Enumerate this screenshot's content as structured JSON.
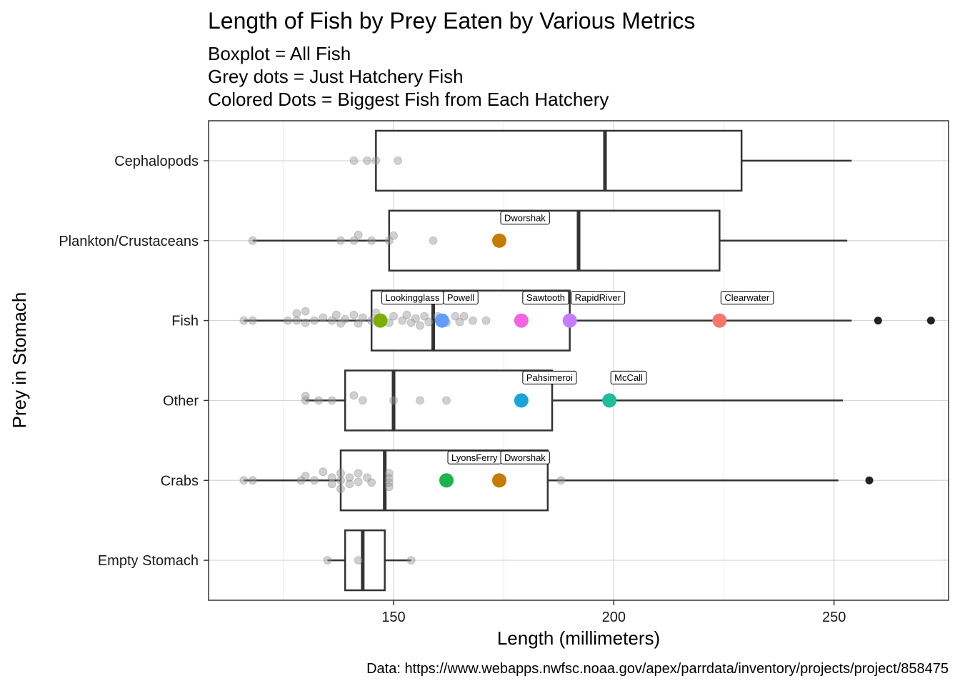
{
  "chart_data": {
    "type": "boxplot",
    "title": "Length of Fish by Prey Eaten by Various Metrics",
    "subtitle_lines": [
      "Boxplot = All Fish",
      "Grey dots = Just Hatchery Fish",
      "Colored Dots = Biggest Fish from Each Hatchery"
    ],
    "xlabel": "Length (millimeters)",
    "ylabel": "Prey in Stomach",
    "caption": "Data: https://www.webapps.nwfsc.noaa.gov/apex/parrdata/inventory/projects/project/858475",
    "xlim": [
      108,
      276
    ],
    "x_ticks": [
      150,
      200,
      250
    ],
    "grid": true,
    "categories": [
      "Cephalopods",
      "Plankton/Crustaceans",
      "Fish",
      "Other",
      "Crabs",
      "Empty Stomach"
    ],
    "boxes": [
      {
        "category": "Cephalopods",
        "whisker_low": 146,
        "q1": 146,
        "median": 198,
        "q3": 229,
        "whisker_high": 254,
        "outliers": []
      },
      {
        "category": "Plankton/Crustaceans",
        "whisker_low": 118,
        "q1": 149,
        "median": 192,
        "q3": 224,
        "whisker_high": 253,
        "outliers": []
      },
      {
        "category": "Fish",
        "whisker_low": 116,
        "q1": 145,
        "median": 159,
        "q3": 190,
        "whisker_high": 254,
        "outliers": [
          260,
          272
        ]
      },
      {
        "category": "Other",
        "whisker_low": 130,
        "q1": 139,
        "median": 150,
        "q3": 186,
        "whisker_high": 252,
        "outliers": []
      },
      {
        "category": "Crabs",
        "whisker_low": 116,
        "q1": 138,
        "median": 148,
        "q3": 185,
        "whisker_high": 251,
        "outliers": [
          258
        ]
      },
      {
        "category": "Empty Stomach",
        "whisker_low": 135,
        "q1": 139,
        "median": 143,
        "q3": 148,
        "whisker_high": 154,
        "outliers": []
      }
    ],
    "hatchery_points": [
      {
        "category": "Cephalopods",
        "x": 141,
        "offset": 0
      },
      {
        "category": "Cephalopods",
        "x": 144,
        "offset": 0
      },
      {
        "category": "Cephalopods",
        "x": 146,
        "offset": 0
      },
      {
        "category": "Cephalopods",
        "x": 151,
        "offset": 0
      },
      {
        "category": "Plankton/Crustaceans",
        "x": 118,
        "offset": 0
      },
      {
        "category": "Plankton/Crustaceans",
        "x": 138,
        "offset": 0
      },
      {
        "category": "Plankton/Crustaceans",
        "x": 141,
        "offset": 0
      },
      {
        "category": "Plankton/Crustaceans",
        "x": 142,
        "offset": -8
      },
      {
        "category": "Plankton/Crustaceans",
        "x": 145,
        "offset": 0
      },
      {
        "category": "Plankton/Crustaceans",
        "x": 149,
        "offset": 0
      },
      {
        "category": "Plankton/Crustaceans",
        "x": 150,
        "offset": -7
      },
      {
        "category": "Plankton/Crustaceans",
        "x": 159,
        "offset": 0
      },
      {
        "category": "Fish",
        "x": 116,
        "offset": 0
      },
      {
        "category": "Fish",
        "x": 118,
        "offset": 0
      },
      {
        "category": "Fish",
        "x": 126,
        "offset": 0
      },
      {
        "category": "Fish",
        "x": 128,
        "offset": -10
      },
      {
        "category": "Fish",
        "x": 128,
        "offset": 0
      },
      {
        "category": "Fish",
        "x": 130,
        "offset": -13
      },
      {
        "category": "Fish",
        "x": 130,
        "offset": 3
      },
      {
        "category": "Fish",
        "x": 132,
        "offset": 0
      },
      {
        "category": "Fish",
        "x": 134,
        "offset": -4
      },
      {
        "category": "Fish",
        "x": 136,
        "offset": 0
      },
      {
        "category": "Fish",
        "x": 137,
        "offset": -8
      },
      {
        "category": "Fish",
        "x": 138,
        "offset": 4
      },
      {
        "category": "Fish",
        "x": 139,
        "offset": -2
      },
      {
        "category": "Fish",
        "x": 141,
        "offset": -8
      },
      {
        "category": "Fish",
        "x": 142,
        "offset": 4
      },
      {
        "category": "Fish",
        "x": 143,
        "offset": -4
      },
      {
        "category": "Fish",
        "x": 145,
        "offset": 0
      },
      {
        "category": "Fish",
        "x": 146,
        "offset": -11
      },
      {
        "category": "Fish",
        "x": 149,
        "offset": 3
      },
      {
        "category": "Fish",
        "x": 150,
        "offset": -6
      },
      {
        "category": "Fish",
        "x": 152,
        "offset": 0
      },
      {
        "category": "Fish",
        "x": 153,
        "offset": -8
      },
      {
        "category": "Fish",
        "x": 154,
        "offset": 3
      },
      {
        "category": "Fish",
        "x": 155,
        "offset": -3
      },
      {
        "category": "Fish",
        "x": 156,
        "offset": 7
      },
      {
        "category": "Fish",
        "x": 157,
        "offset": -6
      },
      {
        "category": "Fish",
        "x": 158,
        "offset": 2
      },
      {
        "category": "Fish",
        "x": 160,
        "offset": -6
      },
      {
        "category": "Fish",
        "x": 162,
        "offset": 3
      },
      {
        "category": "Fish",
        "x": 164,
        "offset": -6
      },
      {
        "category": "Fish",
        "x": 165,
        "offset": 2
      },
      {
        "category": "Fish",
        "x": 166,
        "offset": -6
      },
      {
        "category": "Fish",
        "x": 168,
        "offset": 0
      },
      {
        "category": "Fish",
        "x": 171,
        "offset": 0
      },
      {
        "category": "Other",
        "x": 130,
        "offset": -6
      },
      {
        "category": "Other",
        "x": 130,
        "offset": 0
      },
      {
        "category": "Other",
        "x": 133,
        "offset": 0
      },
      {
        "category": "Other",
        "x": 136,
        "offset": 0
      },
      {
        "category": "Other",
        "x": 141,
        "offset": -7
      },
      {
        "category": "Other",
        "x": 143,
        "offset": 0
      },
      {
        "category": "Other",
        "x": 150,
        "offset": 0
      },
      {
        "category": "Other",
        "x": 156,
        "offset": 0
      },
      {
        "category": "Other",
        "x": 162,
        "offset": 0
      },
      {
        "category": "Crabs",
        "x": 116,
        "offset": 0
      },
      {
        "category": "Crabs",
        "x": 118,
        "offset": 0
      },
      {
        "category": "Crabs",
        "x": 129,
        "offset": 0
      },
      {
        "category": "Crabs",
        "x": 130,
        "offset": -6
      },
      {
        "category": "Crabs",
        "x": 132,
        "offset": 0
      },
      {
        "category": "Crabs",
        "x": 134,
        "offset": -12
      },
      {
        "category": "Crabs",
        "x": 136,
        "offset": -4
      },
      {
        "category": "Crabs",
        "x": 136,
        "offset": 5
      },
      {
        "category": "Crabs",
        "x": 138,
        "offset": -10
      },
      {
        "category": "Crabs",
        "x": 138,
        "offset": 0
      },
      {
        "category": "Crabs",
        "x": 138,
        "offset": 12
      },
      {
        "category": "Crabs",
        "x": 140,
        "offset": -4
      },
      {
        "category": "Crabs",
        "x": 140,
        "offset": 5
      },
      {
        "category": "Crabs",
        "x": 142,
        "offset": -10
      },
      {
        "category": "Crabs",
        "x": 142,
        "offset": 2
      },
      {
        "category": "Crabs",
        "x": 144,
        "offset": -4
      },
      {
        "category": "Crabs",
        "x": 145,
        "offset": 3
      },
      {
        "category": "Crabs",
        "x": 149,
        "offset": -10
      },
      {
        "category": "Crabs",
        "x": 149,
        "offset": -3
      },
      {
        "category": "Crabs",
        "x": 149,
        "offset": 3
      },
      {
        "category": "Crabs",
        "x": 149,
        "offset": 9
      },
      {
        "category": "Crabs",
        "x": 188,
        "offset": 0
      },
      {
        "category": "Empty Stomach",
        "x": 135,
        "offset": 0
      },
      {
        "category": "Empty Stomach",
        "x": 142,
        "offset": 0
      },
      {
        "category": "Empty Stomach",
        "x": 154,
        "offset": 0
      }
    ],
    "biggest_fish": [
      {
        "category": "Plankton/Crustaceans",
        "x": 174,
        "label": "Dworshak",
        "color": "#c77c00"
      },
      {
        "category": "Fish",
        "x": 147,
        "label": "Lookingglass",
        "color": "#7cae00"
      },
      {
        "category": "Fish",
        "x": 161,
        "label": "Powell",
        "color": "#619cff"
      },
      {
        "category": "Fish",
        "x": 179,
        "label": "Sawtooth",
        "color": "#f564e3"
      },
      {
        "category": "Fish",
        "x": 190,
        "label": "RapidRiver",
        "color": "#c77cff"
      },
      {
        "category": "Fish",
        "x": 224,
        "label": "Clearwater",
        "color": "#f8766d"
      },
      {
        "category": "Other",
        "x": 179,
        "label": "Pahsimeroi",
        "color": "#1aa4dc"
      },
      {
        "category": "Other",
        "x": 199,
        "label": "McCall",
        "color": "#1fbd9a"
      },
      {
        "category": "Crabs",
        "x": 162,
        "label": "LyonsFerry",
        "color": "#1cb44b"
      },
      {
        "category": "Crabs",
        "x": 174,
        "label": "Dworshak",
        "color": "#c77c00"
      }
    ]
  }
}
